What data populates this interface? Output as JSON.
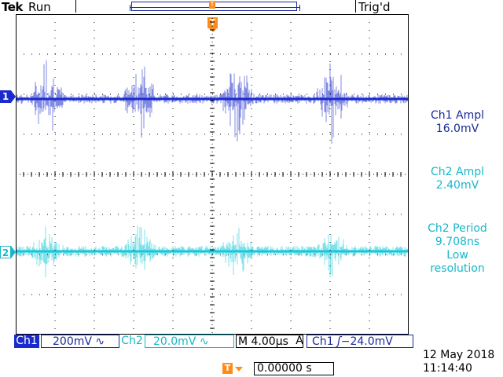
{
  "header": {
    "brand": "Tek",
    "acquisition_state": "Run",
    "trigger_state": "Trig'd"
  },
  "markers": {
    "trigger": "T",
    "ch1": "1",
    "ch2": "2"
  },
  "measurements": {
    "ch1_ampl": {
      "label": "Ch1 Ampl",
      "value": "16.0mV"
    },
    "ch2_ampl": {
      "label": "Ch2 Ampl",
      "value": "2.40mV"
    },
    "ch2_period": {
      "label": "Ch2 Period",
      "value": "9.708ns",
      "note_line1": "Low",
      "note_line2": "resolution"
    }
  },
  "status_bar": {
    "ch1_tag": "Ch1",
    "ch1_scale": "200mV",
    "ch1_coupling_icon": "ac-coupling-symbol",
    "ch2_tag": "Ch2",
    "ch2_scale": "20.0mV",
    "ch2_coupling_icon": "ac-coupling-symbol",
    "timebase": "M 4.00µs",
    "trigger_mode": "A",
    "trigger_source": "Ch1",
    "trigger_slope_icon": "rising-edge-symbol",
    "trigger_level": "−24.0mV"
  },
  "datetime": {
    "date": "12 May 2018",
    "time": "11:14:40"
  },
  "trigger_position": {
    "icon": "trigger-position-icon",
    "value": "0.00000 s"
  },
  "colors": {
    "ch1": "#1a2acc",
    "ch2": "#18c8d8",
    "trigger": "#ff8c1a",
    "grid": "#000000"
  }
}
